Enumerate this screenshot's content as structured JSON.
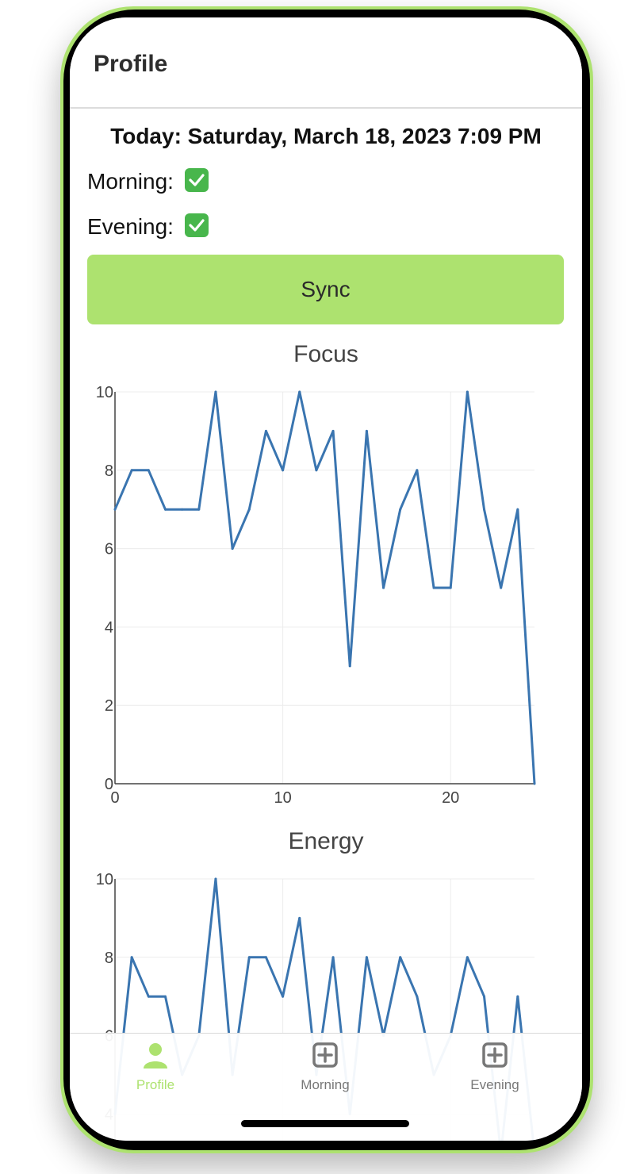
{
  "header": {
    "title": "Profile"
  },
  "status": {
    "date_line": "Today: Saturday, March 18, 2023 7:09 PM",
    "morning_label": "Morning:",
    "evening_label": "Evening:",
    "check_icon": "check-mark-button-icon"
  },
  "sync_button": {
    "label": "Sync"
  },
  "colors": {
    "accent": "#ade26f",
    "line": "#3a75b0",
    "tab_inactive": "#777777"
  },
  "chart_data": [
    {
      "type": "line",
      "title": "Focus",
      "x": [
        0,
        1,
        2,
        3,
        4,
        5,
        6,
        7,
        8,
        9,
        10,
        11,
        12,
        13,
        14,
        15,
        16,
        17,
        18,
        19,
        20,
        21,
        22,
        23,
        24,
        25
      ],
      "y": [
        7,
        8,
        8,
        7,
        7,
        7,
        10,
        6,
        7,
        9,
        8,
        10,
        8,
        9,
        3,
        9,
        5,
        7,
        8,
        5,
        5,
        10,
        7,
        5,
        7,
        0
      ],
      "xlim": [
        0,
        25
      ],
      "ylim": [
        0,
        10
      ],
      "xticks": [
        "0",
        "10",
        "20"
      ],
      "yticks": [
        "0",
        "2",
        "4",
        "6",
        "8",
        "10"
      ],
      "grid": true
    },
    {
      "type": "line",
      "title": "Energy",
      "x": [
        0,
        1,
        2,
        3,
        4,
        5,
        6,
        7,
        8,
        9,
        10,
        11,
        12,
        13,
        14,
        15,
        16,
        17,
        18,
        19,
        20,
        21,
        22,
        23,
        24,
        25
      ],
      "y": [
        4,
        8,
        7,
        7,
        5,
        6,
        10,
        5,
        8,
        8,
        7,
        9,
        5,
        8,
        4,
        8,
        6,
        8,
        7,
        5,
        6,
        8,
        7,
        3,
        7,
        3
      ],
      "xlim": [
        0,
        25
      ],
      "ylim": [
        0,
        10
      ],
      "yticks": [
        "4",
        "6",
        "8",
        "10"
      ],
      "grid": true
    }
  ],
  "tabbar": {
    "tabs": [
      {
        "label": "Profile",
        "icon": "person-icon",
        "active": true
      },
      {
        "label": "Morning",
        "icon": "plus-square-icon",
        "active": false
      },
      {
        "label": "Evening",
        "icon": "plus-square-icon",
        "active": false
      }
    ]
  }
}
